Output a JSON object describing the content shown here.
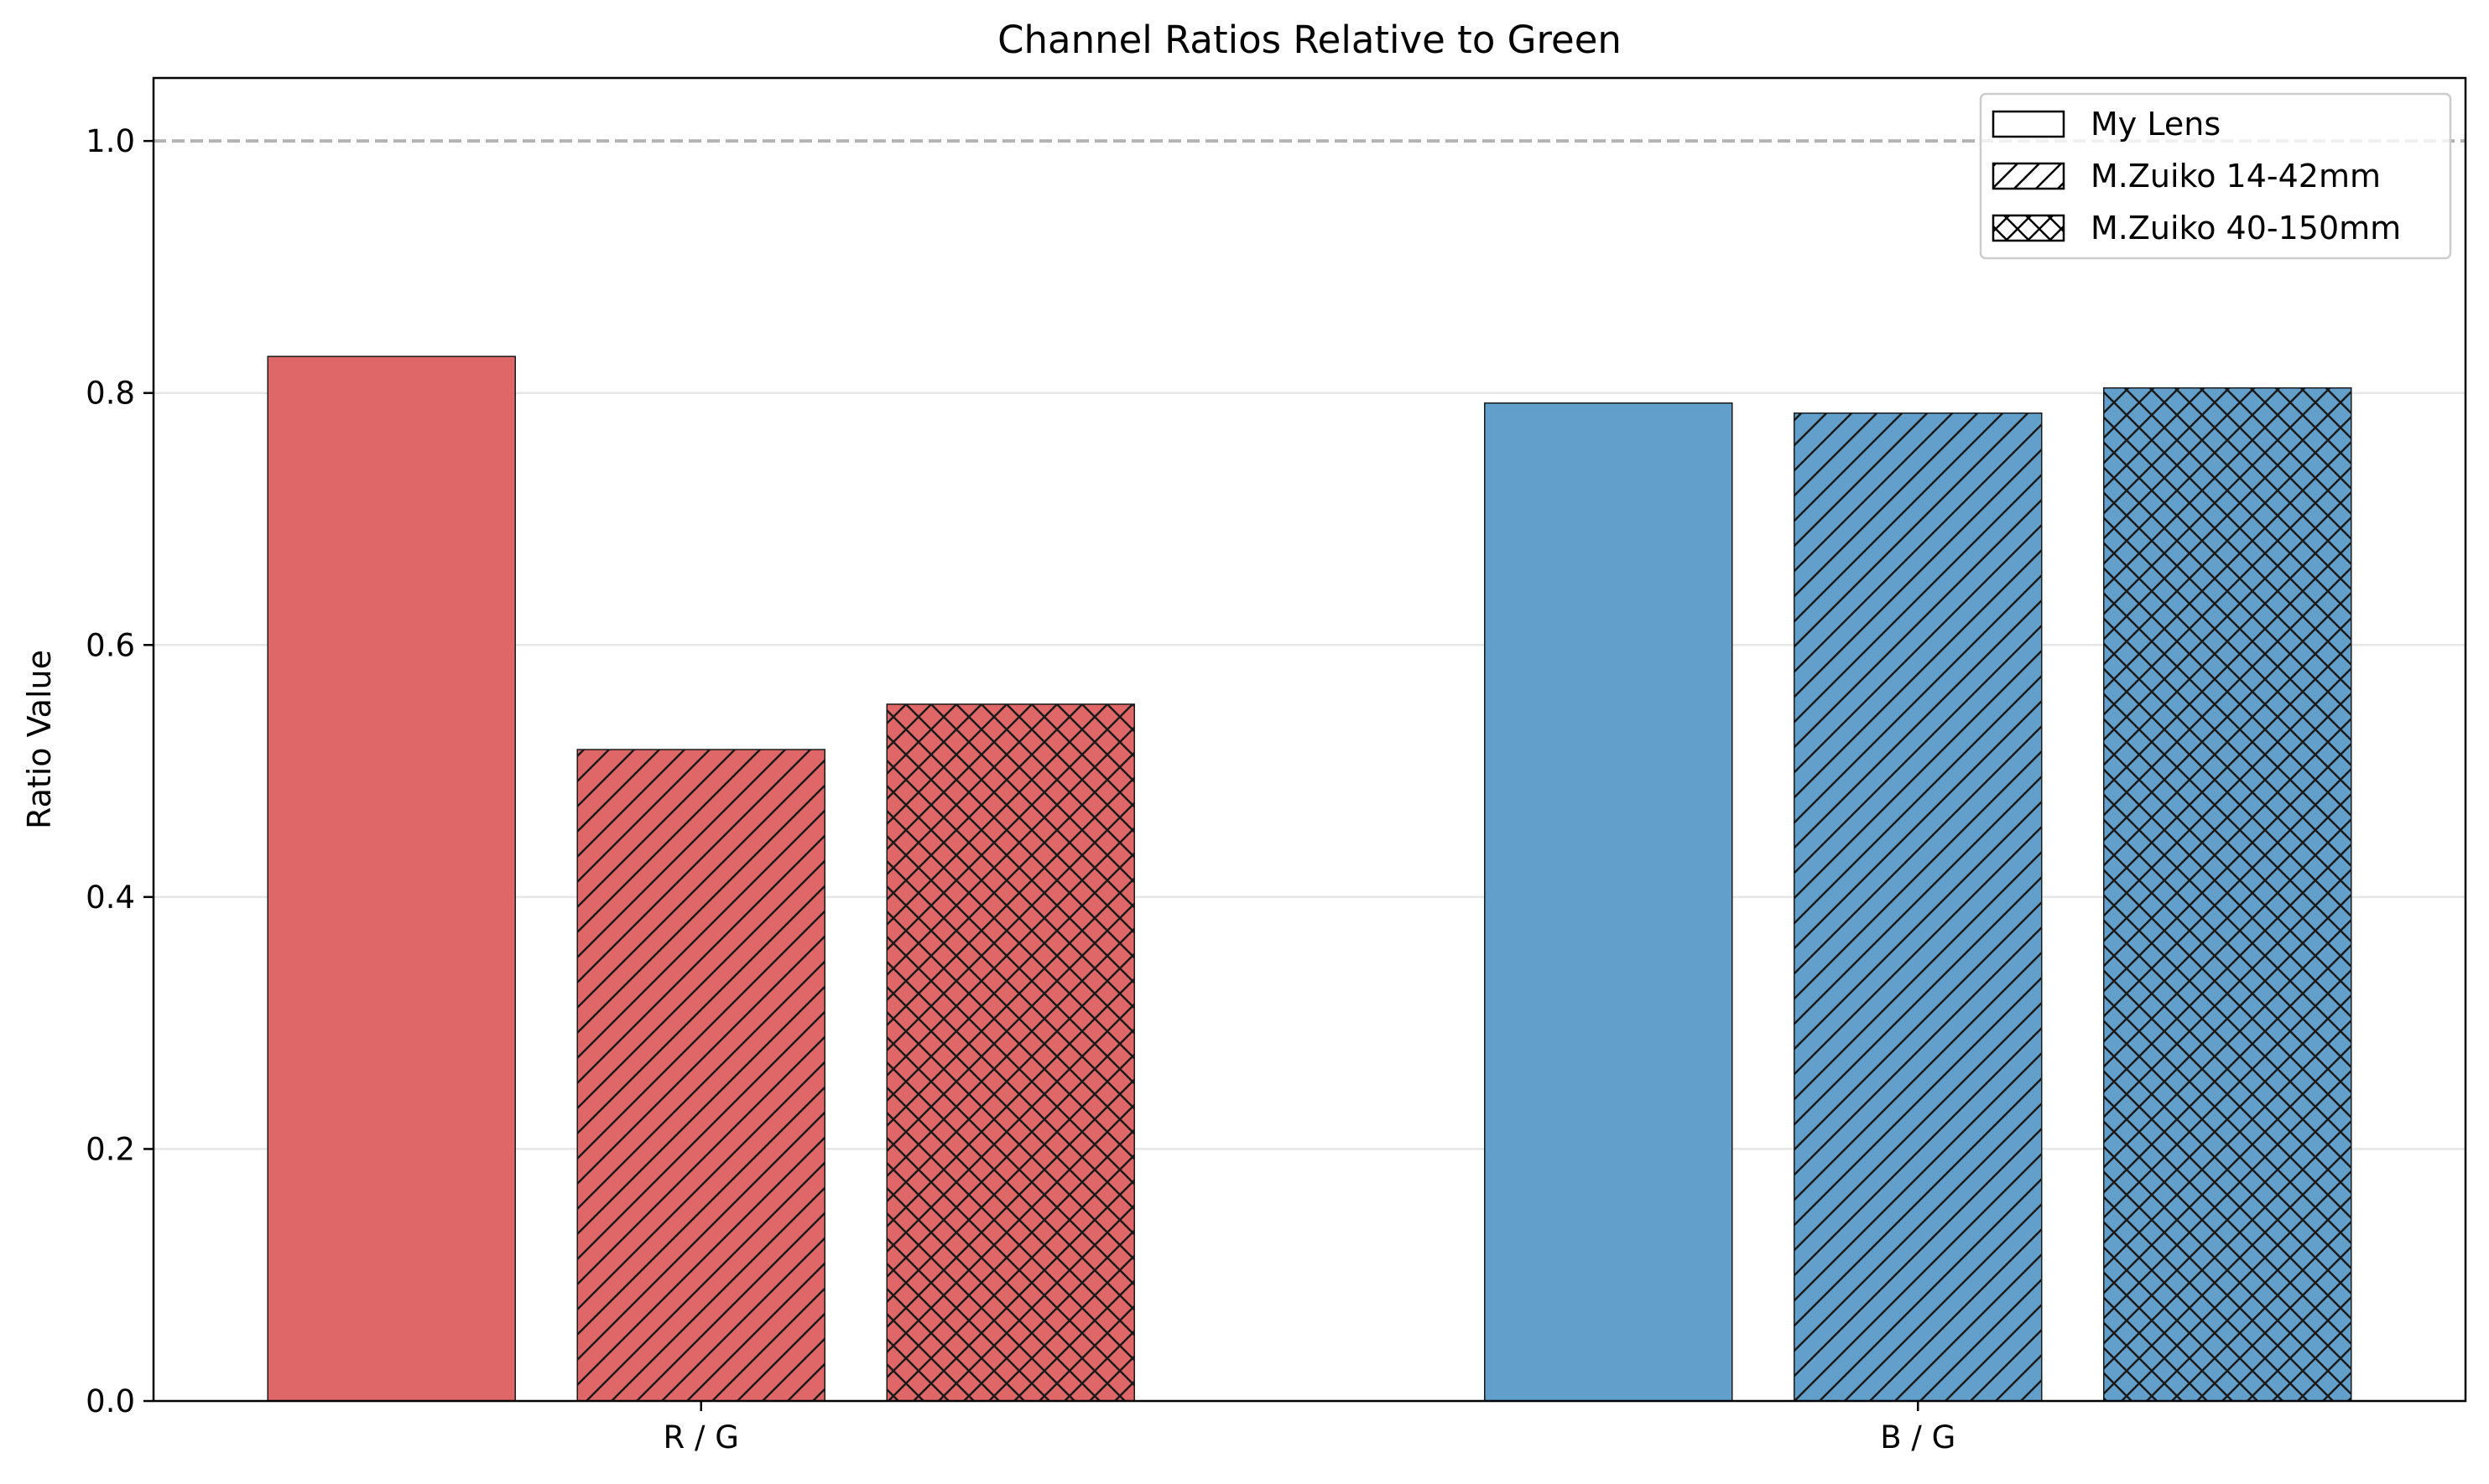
{
  "chart_data": {
    "type": "bar",
    "title": "Channel Ratios Relative to Green",
    "xlabel": "",
    "ylabel": "Ratio Value",
    "categories": [
      "R / G",
      "B / G"
    ],
    "category_colors": [
      "#e06767",
      "#629fcb"
    ],
    "series": [
      {
        "name": "My Lens",
        "hatch": "none",
        "values": [
          0.829,
          0.792
        ]
      },
      {
        "name": "M.Zuiko 14-42mm",
        "hatch": "diagonal",
        "values": [
          0.517,
          0.784
        ]
      },
      {
        "name": "M.Zuiko 40-150mm",
        "hatch": "crosshatch",
        "values": [
          0.553,
          0.804
        ]
      }
    ],
    "ylim": [
      0,
      1.05
    ],
    "yticks": [
      0.0,
      0.2,
      0.4,
      0.6,
      0.8,
      1.0
    ],
    "ytick_labels": [
      "0.0",
      "0.2",
      "0.4",
      "0.6",
      "0.8",
      "1.0"
    ],
    "reference_line": {
      "y": 1.0,
      "style": "dashed",
      "color": "#b3b3b3"
    },
    "grid": "horizontal",
    "legend_position": "top-right"
  }
}
